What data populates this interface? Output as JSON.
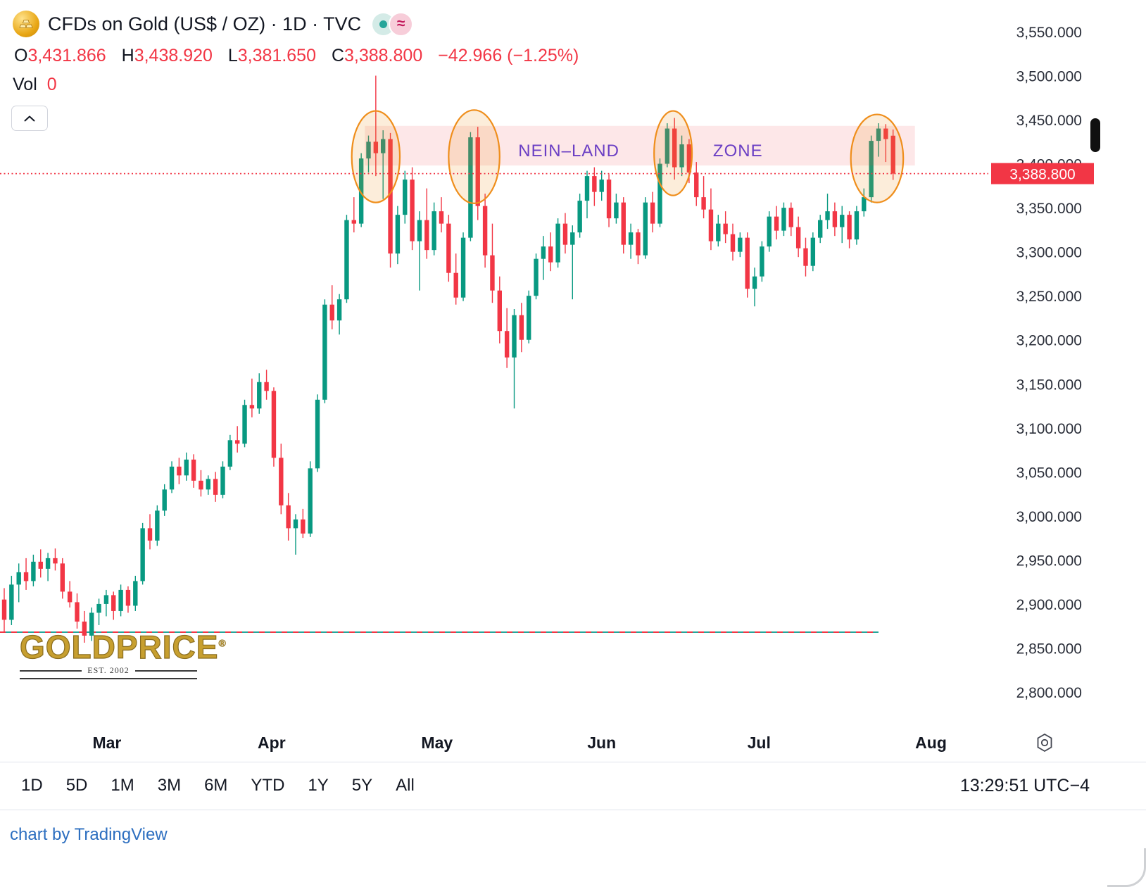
{
  "header": {
    "symbol_title": "CFDs on Gold (US$ / OZ) · 1D · TVC",
    "badge_approx": "≈",
    "ohlc": {
      "o_label": "O",
      "o": "3,431.866",
      "h_label": "H",
      "h": "3,438.920",
      "l_label": "L",
      "l": "3,381.650",
      "c_label": "C",
      "c": "3,388.800",
      "change": "−42.966 (−1.25%)"
    },
    "vol_label": "Vol",
    "vol_value": "0"
  },
  "watermark": {
    "line1": "GOLDPRICE",
    "reg": "®",
    "line2": "EST. 2002"
  },
  "toolbar": {
    "ranges": [
      "1D",
      "5D",
      "1M",
      "3M",
      "6M",
      "YTD",
      "1Y",
      "5Y",
      "All"
    ],
    "clock": "13:29:51 UTC−4"
  },
  "footer": {
    "attribution": "chart by TradingView"
  },
  "chart_data": {
    "type": "candlestick",
    "title": "CFDs on Gold (US$ / OZ)",
    "interval": "1D",
    "exchange": "TVC",
    "price_axis": {
      "min": 2800,
      "max": 3550,
      "step": 50
    },
    "last_price": 3388.8,
    "last_price_label": "3,388.800",
    "months": [
      {
        "label": "Mar",
        "i": 14.1
      },
      {
        "label": "Apr",
        "i": 36.7
      },
      {
        "label": "May",
        "i": 59.4
      },
      {
        "label": "Jun",
        "i": 82.0
      },
      {
        "label": "Jul",
        "i": 103.6
      },
      {
        "label": "Aug",
        "i": 127.2
      }
    ],
    "candles": [
      [
        2905,
        2918,
        2868,
        2882
      ],
      [
        2882,
        2932,
        2876,
        2922
      ],
      [
        2922,
        2946,
        2902,
        2936
      ],
      [
        2936,
        2952,
        2916,
        2926
      ],
      [
        2926,
        2956,
        2920,
        2948
      ],
      [
        2948,
        2962,
        2930,
        2940
      ],
      [
        2940,
        2958,
        2926,
        2952
      ],
      [
        2952,
        2963,
        2938,
        2946
      ],
      [
        2946,
        2952,
        2906,
        2914
      ],
      [
        2914,
        2926,
        2896,
        2902
      ],
      [
        2902,
        2912,
        2872,
        2880
      ],
      [
        2880,
        2892,
        2856,
        2864
      ],
      [
        2864,
        2896,
        2858,
        2890
      ],
      [
        2890,
        2906,
        2876,
        2900
      ],
      [
        2900,
        2916,
        2886,
        2910
      ],
      [
        2910,
        2914,
        2882,
        2892
      ],
      [
        2892,
        2922,
        2886,
        2916
      ],
      [
        2916,
        2920,
        2890,
        2898
      ],
      [
        2898,
        2932,
        2892,
        2926
      ],
      [
        2926,
        2992,
        2922,
        2986
      ],
      [
        2986,
        3002,
        2962,
        2972
      ],
      [
        2972,
        3012,
        2966,
        3006
      ],
      [
        3006,
        3036,
        3000,
        3030
      ],
      [
        3030,
        3062,
        3026,
        3056
      ],
      [
        3056,
        3066,
        3036,
        3046
      ],
      [
        3046,
        3072,
        3040,
        3064
      ],
      [
        3064,
        3070,
        3032,
        3040
      ],
      [
        3040,
        3052,
        3022,
        3030
      ],
      [
        3030,
        3046,
        3024,
        3042
      ],
      [
        3042,
        3050,
        3016,
        3024
      ],
      [
        3024,
        3062,
        3020,
        3056
      ],
      [
        3056,
        3092,
        3052,
        3086
      ],
      [
        3086,
        3102,
        3072,
        3082
      ],
      [
        3082,
        3132,
        3078,
        3126
      ],
      [
        3126,
        3156,
        3112,
        3122
      ],
      [
        3122,
        3162,
        3116,
        3152
      ],
      [
        3152,
        3166,
        3132,
        3142
      ],
      [
        3142,
        3146,
        3056,
        3066
      ],
      [
        3066,
        3082,
        3002,
        3012
      ],
      [
        3012,
        3026,
        2972,
        2986
      ],
      [
        2986,
        3002,
        2956,
        2996
      ],
      [
        2996,
        3008,
        2975,
        2980
      ],
      [
        2980,
        3062,
        2976,
        3054
      ],
      [
        3054,
        3138,
        3050,
        3132
      ],
      [
        3132,
        3246,
        3128,
        3240
      ],
      [
        3240,
        3262,
        3212,
        3222
      ],
      [
        3222,
        3252,
        3206,
        3246
      ],
      [
        3246,
        3342,
        3242,
        3336
      ],
      [
        3336,
        3362,
        3322,
        3332
      ],
      [
        3332,
        3412,
        3328,
        3406
      ],
      [
        3406,
        3432,
        3390,
        3425
      ],
      [
        3425,
        3500,
        3386,
        3412
      ],
      [
        3412,
        3438,
        3360,
        3428
      ],
      [
        3428,
        3435,
        3282,
        3298
      ],
      [
        3298,
        3352,
        3286,
        3342
      ],
      [
        3342,
        3392,
        3332,
        3382
      ],
      [
        3382,
        3396,
        3302,
        3312
      ],
      [
        3312,
        3346,
        3256,
        3336
      ],
      [
        3336,
        3372,
        3292,
        3302
      ],
      [
        3302,
        3356,
        3296,
        3346
      ],
      [
        3346,
        3362,
        3322,
        3332
      ],
      [
        3332,
        3342,
        3266,
        3276
      ],
      [
        3276,
        3298,
        3240,
        3248
      ],
      [
        3248,
        3322,
        3244,
        3316
      ],
      [
        3316,
        3436,
        3312,
        3430
      ],
      [
        3430,
        3442,
        3336,
        3352
      ],
      [
        3352,
        3366,
        3282,
        3296
      ],
      [
        3296,
        3332,
        3242,
        3256
      ],
      [
        3256,
        3272,
        3196,
        3210
      ],
      [
        3210,
        3236,
        3168,
        3180
      ],
      [
        3180,
        3235,
        3122,
        3228
      ],
      [
        3228,
        3242,
        3186,
        3200
      ],
      [
        3200,
        3256,
        3196,
        3250
      ],
      [
        3250,
        3298,
        3246,
        3292
      ],
      [
        3292,
        3318,
        3268,
        3306
      ],
      [
        3306,
        3322,
        3278,
        3288
      ],
      [
        3288,
        3338,
        3282,
        3332
      ],
      [
        3332,
        3344,
        3298,
        3308
      ],
      [
        3308,
        3330,
        3246,
        3322
      ],
      [
        3322,
        3366,
        3316,
        3358
      ],
      [
        3358,
        3392,
        3338,
        3386
      ],
      [
        3386,
        3396,
        3352,
        3368
      ],
      [
        3368,
        3392,
        3358,
        3382
      ],
      [
        3382,
        3388,
        3328,
        3338
      ],
      [
        3338,
        3366,
        3332,
        3356
      ],
      [
        3356,
        3362,
        3298,
        3308
      ],
      [
        3308,
        3332,
        3292,
        3322
      ],
      [
        3322,
        3326,
        3286,
        3296
      ],
      [
        3296,
        3362,
        3292,
        3356
      ],
      [
        3356,
        3368,
        3322,
        3332
      ],
      [
        3332,
        3406,
        3328,
        3400
      ],
      [
        3400,
        3446,
        3396,
        3440
      ],
      [
        3440,
        3452,
        3382,
        3396
      ],
      [
        3396,
        3432,
        3386,
        3422
      ],
      [
        3422,
        3428,
        3378,
        3390
      ],
      [
        3390,
        3402,
        3352,
        3362
      ],
      [
        3362,
        3386,
        3338,
        3348
      ],
      [
        3348,
        3372,
        3302,
        3312
      ],
      [
        3312,
        3342,
        3306,
        3332
      ],
      [
        3332,
        3346,
        3310,
        3320
      ],
      [
        3320,
        3332,
        3290,
        3300
      ],
      [
        3300,
        3322,
        3294,
        3316
      ],
      [
        3316,
        3322,
        3248,
        3258
      ],
      [
        3258,
        3282,
        3238,
        3272
      ],
      [
        3272,
        3312,
        3266,
        3306
      ],
      [
        3306,
        3346,
        3300,
        3340
      ],
      [
        3340,
        3352,
        3314,
        3324
      ],
      [
        3324,
        3356,
        3318,
        3350
      ],
      [
        3350,
        3356,
        3318,
        3328
      ],
      [
        3328,
        3340,
        3294,
        3304
      ],
      [
        3304,
        3316,
        3272,
        3284
      ],
      [
        3284,
        3322,
        3278,
        3316
      ],
      [
        3316,
        3342,
        3310,
        3336
      ],
      [
        3336,
        3366,
        3326,
        3346
      ],
      [
        3346,
        3356,
        3318,
        3328
      ],
      [
        3328,
        3352,
        3310,
        3342
      ],
      [
        3342,
        3346,
        3304,
        3314
      ],
      [
        3314,
        3352,
        3308,
        3346
      ],
      [
        3346,
        3372,
        3340,
        3362
      ],
      [
        3362,
        3432,
        3356,
        3426
      ],
      [
        3426,
        3446,
        3408,
        3440
      ],
      [
        3440,
        3445,
        3402,
        3428
      ],
      [
        3431.866,
        3438.92,
        3381.65,
        3388.8
      ]
    ],
    "zone": {
      "label1": "NEIN–LAND",
      "label2": "ZONE",
      "from_index": 49.5,
      "to_index": 125,
      "price_top": 3443,
      "price_bottom": 3398,
      "label1_index": 77.5,
      "label2_index": 100.7,
      "label_price": 3415
    },
    "ellipses": [
      {
        "i": 51,
        "p": 3408,
        "ri": 3.3,
        "rp": 52
      },
      {
        "i": 64.5,
        "p": 3408,
        "ri": 3.5,
        "rp": 53
      },
      {
        "i": 91.8,
        "p": 3412,
        "ri": 2.6,
        "rp": 48
      },
      {
        "i": 119.8,
        "p": 3406,
        "ri": 3.6,
        "rp": 50
      }
    ],
    "baseline": {
      "price": 2868,
      "to_index": 120
    },
    "colors": {
      "up": "#089981",
      "down": "#f23645",
      "zone_fill": "#f23645",
      "zone_text": "#6b3fc4",
      "ellipse": "#ef8e1b",
      "baseline_red": "#f23645",
      "baseline_teal": "#26a69a",
      "axis_text": "#2a2e39",
      "tag_bg": "#f23645",
      "tag_text": "#ffffff"
    }
  }
}
